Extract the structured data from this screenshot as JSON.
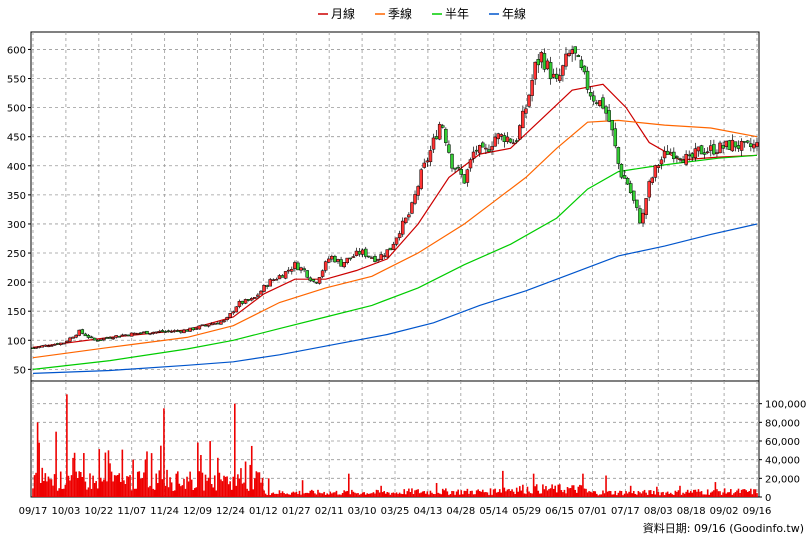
{
  "chart_data": [
    {
      "type": "candlestick-line",
      "panel": "price",
      "legend": [
        {
          "label": "月線",
          "color": "#cc0000"
        },
        {
          "label": "季線",
          "color": "#ff6600"
        },
        {
          "label": "半年",
          "color": "#00cc00"
        },
        {
          "label": "年線",
          "color": "#0055cc"
        }
      ],
      "ylim": [
        30,
        630
      ],
      "yticks": [
        50,
        100,
        150,
        200,
        250,
        300,
        350,
        400,
        450,
        500,
        550,
        600
      ],
      "x_tick_labels": [
        "09/17",
        "10/03",
        "10/22",
        "11/07",
        "11/24",
        "12/09",
        "12/24",
        "01/12",
        "01/27",
        "02/11",
        "03/10",
        "03/25",
        "04/13",
        "04/28",
        "05/14",
        "05/29",
        "06/15",
        "07/01",
        "07/17",
        "08/03",
        "08/18",
        "09/02",
        "09/16"
      ],
      "close_path": [
        [
          0,
          87
        ],
        [
          10,
          92
        ],
        [
          20,
          96
        ],
        [
          30,
          115
        ],
        [
          40,
          100
        ],
        [
          55,
          108
        ],
        [
          70,
          113
        ],
        [
          85,
          115
        ],
        [
          100,
          117
        ],
        [
          115,
          128
        ],
        [
          125,
          133
        ],
        [
          133,
          163
        ],
        [
          143,
          170
        ],
        [
          153,
          200
        ],
        [
          163,
          215
        ],
        [
          170,
          230
        ],
        [
          176,
          220
        ],
        [
          183,
          198
        ],
        [
          193,
          245
        ],
        [
          200,
          232
        ],
        [
          206,
          242
        ],
        [
          213,
          252
        ],
        [
          223,
          240
        ],
        [
          232,
          258
        ],
        [
          238,
          290
        ],
        [
          245,
          320
        ],
        [
          252,
          385
        ],
        [
          258,
          425
        ],
        [
          265,
          480
        ],
        [
          272,
          405
        ],
        [
          280,
          375
        ],
        [
          287,
          430
        ],
        [
          293,
          420
        ],
        [
          300,
          450
        ],
        [
          307,
          450
        ],
        [
          313,
          440
        ],
        [
          320,
          500
        ],
        [
          326,
          570
        ],
        [
          330,
          590
        ],
        [
          335,
          565
        ],
        [
          340,
          540
        ],
        [
          346,
          580
        ],
        [
          350,
          600
        ],
        [
          356,
          560
        ],
        [
          363,
          520
        ],
        [
          370,
          505
        ],
        [
          375,
          470
        ],
        [
          381,
          390
        ],
        [
          386,
          370
        ],
        [
          391,
          330
        ],
        [
          395,
          300
        ],
        [
          399,
          360
        ],
        [
          405,
          400
        ],
        [
          412,
          425
        ],
        [
          420,
          420
        ],
        [
          426,
          408
        ],
        [
          432,
          425
        ],
        [
          440,
          428
        ],
        [
          448,
          432
        ],
        [
          455,
          438
        ],
        [
          462,
          430
        ],
        [
          470,
          435
        ]
      ],
      "ma": [
        {
          "label": "月線",
          "color": "#cc0000",
          "points": [
            [
              0,
              88
            ],
            [
              50,
              105
            ],
            [
              100,
              118
            ],
            [
              130,
              140
            ],
            [
              150,
              180
            ],
            [
              170,
              205
            ],
            [
              190,
              205
            ],
            [
              210,
              220
            ],
            [
              230,
              240
            ],
            [
              250,
              300
            ],
            [
              270,
              380
            ],
            [
              290,
              420
            ],
            [
              310,
              430
            ],
            [
              330,
              480
            ],
            [
              350,
              530
            ],
            [
              370,
              540
            ],
            [
              385,
              500
            ],
            [
              400,
              440
            ],
            [
              420,
              410
            ],
            [
              445,
              415
            ],
            [
              470,
              418
            ]
          ]
        },
        {
          "label": "季線",
          "color": "#ff6600",
          "points": [
            [
              0,
              70
            ],
            [
              50,
              88
            ],
            [
              100,
              105
            ],
            [
              130,
              125
            ],
            [
              160,
              165
            ],
            [
              190,
              190
            ],
            [
              220,
              210
            ],
            [
              250,
              250
            ],
            [
              280,
              300
            ],
            [
              300,
              340
            ],
            [
              320,
              380
            ],
            [
              340,
              430
            ],
            [
              360,
              475
            ],
            [
              380,
              478
            ],
            [
              410,
              470
            ],
            [
              440,
              465
            ],
            [
              470,
              450
            ]
          ]
        },
        {
          "label": "半年",
          "color": "#00cc00",
          "points": [
            [
              0,
              50
            ],
            [
              50,
              65
            ],
            [
              100,
              85
            ],
            [
              130,
              100
            ],
            [
              160,
              120
            ],
            [
              190,
              140
            ],
            [
              220,
              160
            ],
            [
              250,
              190
            ],
            [
              280,
              230
            ],
            [
              310,
              265
            ],
            [
              340,
              310
            ],
            [
              360,
              360
            ],
            [
              380,
              390
            ],
            [
              400,
              398
            ],
            [
              420,
              405
            ],
            [
              445,
              413
            ],
            [
              470,
              418
            ]
          ]
        },
        {
          "label": "年線",
          "color": "#0055cc",
          "points": [
            [
              0,
              43
            ],
            [
              50,
              48
            ],
            [
              100,
              57
            ],
            [
              130,
              63
            ],
            [
              160,
              75
            ],
            [
              200,
              95
            ],
            [
              230,
              110
            ],
            [
              260,
              130
            ],
            [
              290,
              160
            ],
            [
              320,
              185
            ],
            [
              350,
              215
            ],
            [
              380,
              245
            ],
            [
              410,
              262
            ],
            [
              440,
              282
            ],
            [
              470,
              300
            ]
          ]
        }
      ]
    },
    {
      "type": "bar",
      "panel": "volume",
      "color": "#ee0000",
      "ylim": [
        0,
        120000
      ],
      "yticks": [
        0,
        20000,
        40000,
        60000,
        80000,
        100000
      ],
      "ytick_labels": [
        "0",
        "20,000",
        "40,000",
        "60,000",
        "80,000",
        "100,000"
      ],
      "spikes": [
        [
          3,
          80000
        ],
        [
          15,
          70000
        ],
        [
          22,
          110000
        ],
        [
          40,
          15000
        ],
        [
          49,
          50000
        ],
        [
          65,
          40000
        ],
        [
          68,
          27000
        ],
        [
          83,
          55000
        ],
        [
          85,
          95000
        ],
        [
          93,
          25000
        ],
        [
          109,
          45000
        ],
        [
          120,
          42000
        ],
        [
          131,
          100000
        ],
        [
          138,
          38000
        ],
        [
          144,
          20000
        ],
        [
          153,
          20000
        ],
        [
          175,
          18000
        ],
        [
          205,
          25000
        ],
        [
          226,
          12000
        ],
        [
          262,
          15000
        ],
        [
          305,
          28000
        ],
        [
          325,
          25000
        ],
        [
          357,
          25000
        ],
        [
          372,
          23000
        ],
        [
          388,
          12000
        ],
        [
          405,
          11000
        ],
        [
          420,
          12000
        ],
        [
          443,
          16000
        ]
      ]
    }
  ],
  "source_label": "資料日期: 09/16  (Goodinfo.tw)"
}
